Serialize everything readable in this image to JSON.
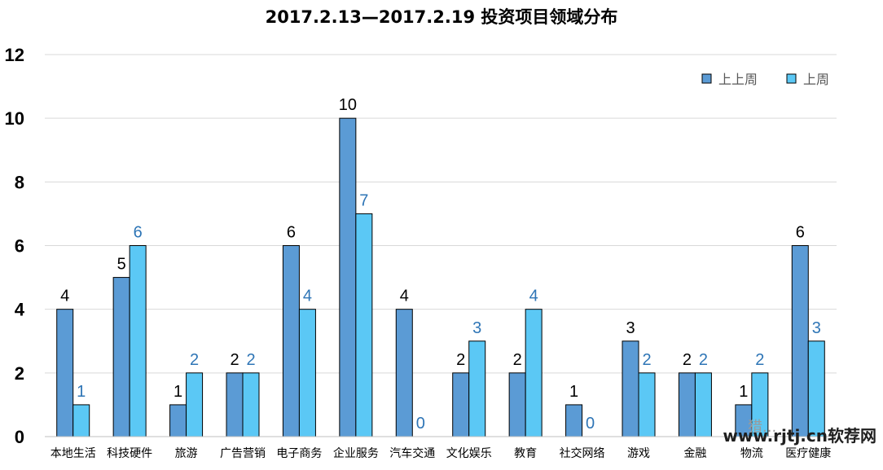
{
  "chart_data": {
    "type": "bar",
    "title": "2017.2.13—2017.2.19 投资项目领域分布",
    "categories": [
      "本地生活",
      "科技硬件",
      "旅游",
      "广告营销",
      "电子商务",
      "企业服务",
      "汽车交通",
      "文化娱乐",
      "教育",
      "社交网络",
      "游戏",
      "金融",
      "物流",
      "医疗健康"
    ],
    "series": [
      {
        "name": "上上周",
        "color": "#5B9BD5",
        "label_color": "#000000",
        "values": [
          4,
          5,
          1,
          2,
          6,
          10,
          4,
          2,
          2,
          1,
          3,
          2,
          1,
          6
        ]
      },
      {
        "name": "上周",
        "color": "#5BC8F5",
        "label_color": "#2E75B6",
        "values": [
          1,
          6,
          2,
          2,
          4,
          7,
          0,
          3,
          4,
          0,
          2,
          2,
          2,
          3
        ]
      }
    ],
    "ylim": [
      0,
      12
    ],
    "yticks": [
      "0",
      "2",
      "4",
      "6",
      "8",
      "10",
      "12"
    ],
    "grid": true,
    "legend": "top-right",
    "data_labels": true
  },
  "watermark": {
    "text": "www.rjtj.cn软荐网",
    "faint_text": "猎..."
  }
}
